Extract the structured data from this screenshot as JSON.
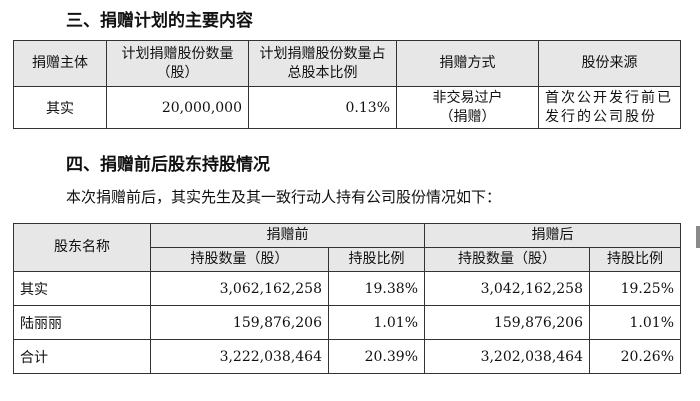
{
  "section3": {
    "heading": "三、捐赠计划的主要内容",
    "table": {
      "headers": [
        "捐赠主体",
        "计划捐赠股份数量（股）",
        "计划捐赠股份数量占总股本比例",
        "捐赠方式",
        "股份来源"
      ],
      "row": {
        "donor": "其实",
        "shares": "20,000,000",
        "ratio": "0.13%",
        "method_line1": "非交易过户",
        "method_line2": "（捐赠）",
        "source": "首次公开发行前已发行的公司股份"
      }
    }
  },
  "section4": {
    "heading": "四、捐赠前后股东持股情况",
    "intro": "本次捐赠前后，其实先生及其一致行动人持有公司股份情况如下：",
    "table": {
      "col_name": "股东名称",
      "group_before": "捐赠前",
      "group_after": "捐赠后",
      "sub_shares": "持股数量（股）",
      "sub_ratio": "持股比例",
      "rows": [
        {
          "name": "其实",
          "before_shares": "3,062,162,258",
          "before_ratio": "19.38%",
          "after_shares": "3,042,162,258",
          "after_ratio": "19.25%"
        },
        {
          "name": "陆丽丽",
          "before_shares": "159,876,206",
          "before_ratio": "1.01%",
          "after_shares": "159,876,206",
          "after_ratio": "1.01%"
        },
        {
          "name": "合计",
          "before_shares": "3,222,038,464",
          "before_ratio": "20.39%",
          "after_shares": "3,202,038,464",
          "after_ratio": "20.26%"
        }
      ]
    }
  }
}
